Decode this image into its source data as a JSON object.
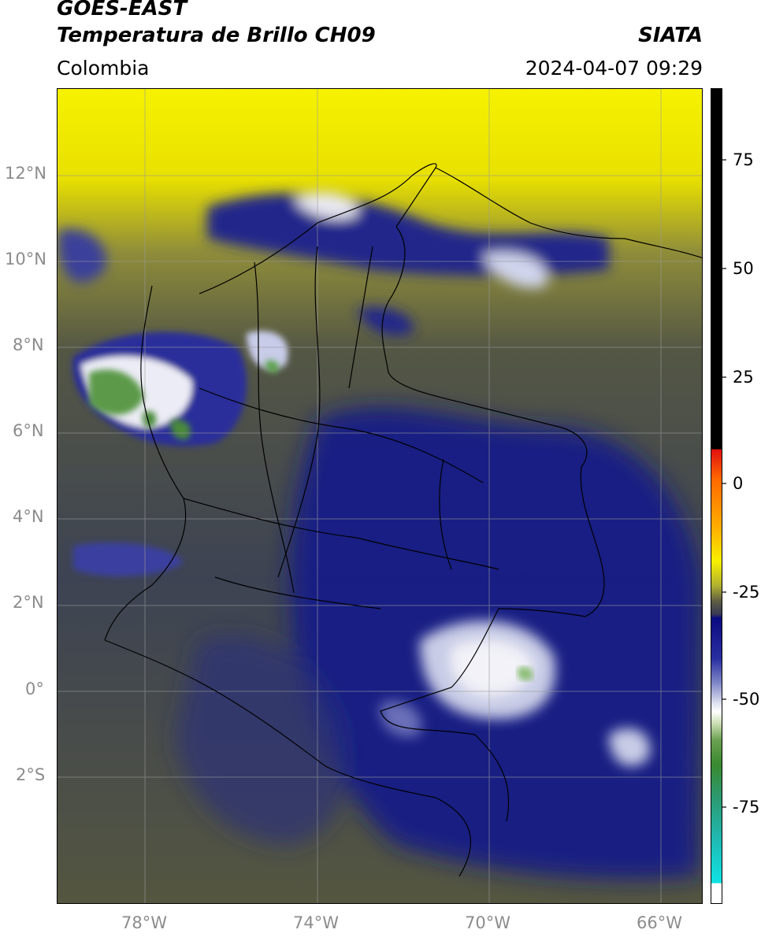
{
  "header": {
    "satellite": "GOES-EAST",
    "product": "Temperatura de Brillo CH09",
    "region": "Colombia",
    "agency": "SIATA",
    "datetime": "2024-04-07 09:29"
  },
  "map": {
    "lat_labels": [
      "12°N",
      "10°N",
      "8°N",
      "6°N",
      "4°N",
      "2°N",
      "0°",
      "2°S"
    ],
    "lon_labels": [
      "78°W",
      "74°W",
      "70°W",
      "66°W"
    ],
    "extent": {
      "lon_min": -80,
      "lon_max": -65,
      "lat_min": -5,
      "lat_max": 14
    },
    "colors": {
      "background_dark": "#3b3f4a",
      "cloud_blue": "#1a1f8a",
      "warm_yellow": "#f5f000",
      "cold_white": "#ffffff",
      "cold_green": "#4c9a3c"
    }
  },
  "colorbar": {
    "ticks": [
      "75",
      "50",
      "25",
      "0",
      "-25",
      "-50",
      "-75"
    ],
    "range": [
      -95,
      90
    ]
  }
}
